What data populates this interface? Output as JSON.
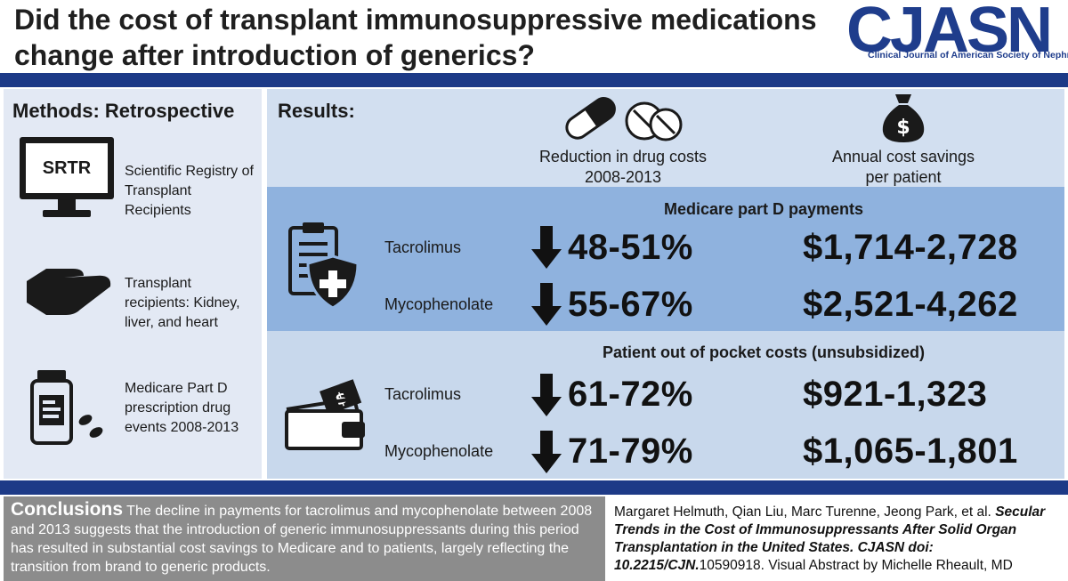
{
  "header": {
    "title": "Did the cost of transplant immunosuppressive medications change after introduction of generics?",
    "logo": "CJASN",
    "logo_subtitle": "Clinical Journal of American Society of Nephrology"
  },
  "methods": {
    "heading": "Methods: Retrospective",
    "srtr_label": "SRTR",
    "items": [
      {
        "text": "Scientific Registry of Transplant Recipients",
        "icon": "monitor-icon"
      },
      {
        "text": "Transplant recipients: Kidney, liver, and heart",
        "icon": "hand-icon"
      },
      {
        "text": "Medicare Part D prescription drug events 2008-2013",
        "icon": "pill-bottle-icon"
      }
    ]
  },
  "results": {
    "heading": "Results:",
    "col1_header": "Reduction in drug costs 2008-2013",
    "col2_header": "Annual cost savings per patient",
    "sections": [
      {
        "title": "Medicare part D payments",
        "rows": [
          {
            "drug": "Tacrolimus",
            "reduction": "48-51%",
            "savings": "$1,714-2,728"
          },
          {
            "drug": "Mycophenolate",
            "reduction": "55-67%",
            "savings": "$2,521-4,262"
          }
        ]
      },
      {
        "title": "Patient out of pocket costs (unsubsidized)",
        "rows": [
          {
            "drug": "Tacrolimus",
            "reduction": "61-72%",
            "savings": "$921-1,323"
          },
          {
            "drug": "Mycophenolate",
            "reduction": "71-79%",
            "savings": "$1,065-1,801"
          }
        ]
      }
    ]
  },
  "conclusions": {
    "heading": "Conclusions",
    "text": "The decline in payments for tacrolimus and mycophenolate between 2008 and 2013 suggests that the introduction of generic immunosuppressants during this period has resulted in substantial cost savings to Medicare and to patients, largely reflecting the transition from brand to generic products."
  },
  "citation": {
    "authors": "Margaret Helmuth, Qian Liu, Marc Turenne, Jeong Park, et al.",
    "title": "Secular Trends in the Cost of Immunosuppressants After Solid Organ Transplantation in the United States. CJASN doi: 10.2215/CJN.",
    "doi_tail": "10590918. Visual Abstract by Michelle Rheault, MD"
  },
  "colors": {
    "navy": "#1d3a87",
    "medicare_band": "#8fb2de",
    "patient_band": "#c8d8ec",
    "conclusion_bg": "#8c8c8c"
  }
}
